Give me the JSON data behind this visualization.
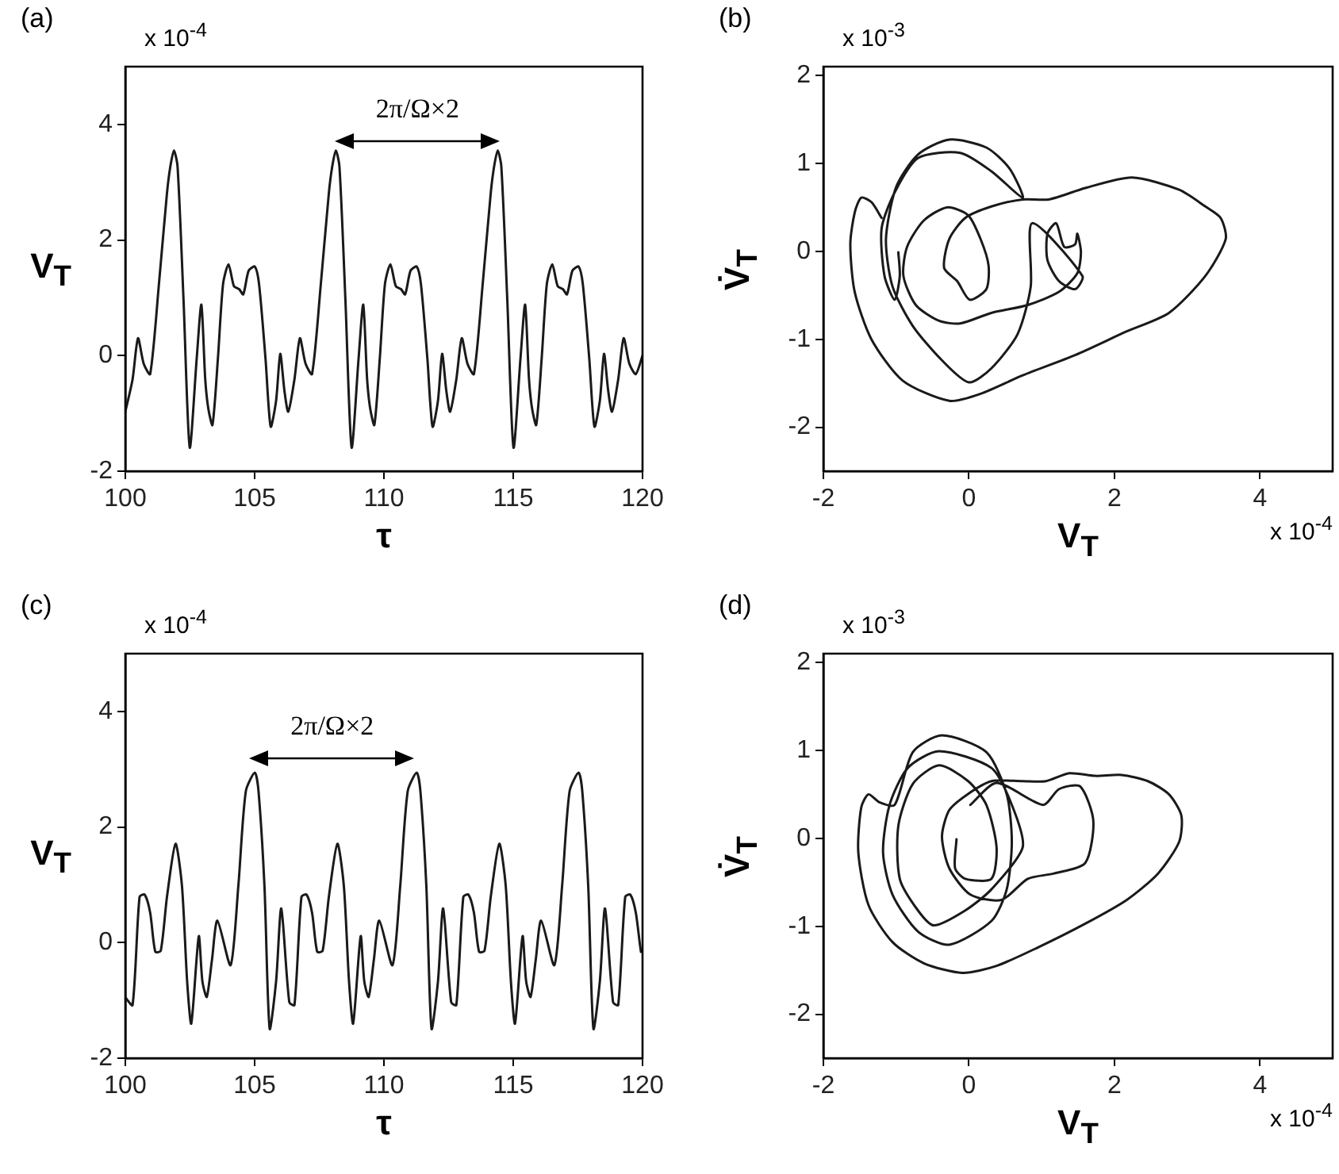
{
  "chart_data": [
    {
      "type": "line",
      "title": "(a)",
      "xlabel": "τ",
      "ylabel": "V$_{T}$",
      "xlim": [
        100,
        120
      ],
      "ylim": [
        -2,
        5
      ],
      "xticks": [
        100,
        105,
        110,
        115,
        120
      ],
      "yticks": [
        -2,
        0,
        2,
        4
      ],
      "annotations": [
        "x 10$^{-4}$",
        "2π/Ω×2"
      ],
      "series": [
        {
          "color": "#1a1a1a",
          "x": [
            100,
            100.28,
            100.49,
            100.71,
            100.96,
            101.3,
            101.61,
            101.74,
            101.88,
            102.02,
            102.25,
            102.49,
            102.76,
            102.94,
            103.09,
            103.21,
            103.37,
            103.58,
            103.78,
            103.99,
            104.2,
            104.4,
            104.56,
            104.77,
            105.01,
            105.17,
            105.42,
            105.62,
            105.83,
            105.99,
            106.15,
            106.3,
            106.54,
            106.75,
            106.97,
            107.22,
            107.56,
            107.87,
            108.0,
            108.14,
            108.28,
            108.51,
            108.75,
            109.02,
            109.2,
            109.35,
            109.47,
            109.63,
            109.84,
            110.04,
            110.25,
            110.46,
            110.66,
            110.82,
            111.03,
            111.27,
            111.43,
            111.68,
            111.88,
            112.09,
            112.25,
            112.41,
            112.56,
            112.8,
            113.01,
            113.23,
            113.48,
            113.82,
            114.13,
            114.26,
            114.4,
            114.54,
            114.77,
            115.01,
            115.28,
            115.46,
            115.61,
            115.73,
            115.89,
            116.1,
            116.3,
            116.51,
            116.72,
            116.92,
            117.08,
            117.29,
            117.53,
            117.69,
            117.94,
            118.14,
            118.35,
            118.51,
            118.67,
            118.82,
            119.06,
            119.27,
            119.49,
            119.74,
            120.0
          ],
          "values": [
            -0.97,
            -0.41,
            0.3,
            -0.14,
            -0.32,
            1.24,
            2.81,
            3.27,
            3.55,
            3.27,
            0.97,
            -1.59,
            -0.05,
            0.88,
            -0.41,
            -0.92,
            -1.2,
            -0.05,
            1.24,
            1.58,
            1.2,
            1.15,
            1.06,
            1.47,
            1.54,
            1.24,
            -0.05,
            -1.23,
            -0.78,
            0.03,
            -0.6,
            -0.97,
            -0.41,
            0.3,
            -0.14,
            -0.32,
            1.24,
            2.81,
            3.27,
            3.55,
            3.27,
            0.97,
            -1.59,
            -0.05,
            0.88,
            -0.41,
            -0.92,
            -1.2,
            -0.05,
            1.24,
            1.58,
            1.2,
            1.15,
            1.06,
            1.47,
            1.54,
            1.24,
            -0.05,
            -1.23,
            -0.78,
            0.03,
            -0.6,
            -0.97,
            -0.41,
            0.3,
            -0.14,
            -0.32,
            1.24,
            2.81,
            3.27,
            3.55,
            3.27,
            0.97,
            -1.59,
            -0.05,
            0.88,
            -0.41,
            -0.92,
            -1.2,
            -0.05,
            1.24,
            1.58,
            1.2,
            1.15,
            1.06,
            1.47,
            1.54,
            1.24,
            -0.05,
            -1.23,
            -0.78,
            0.03,
            -0.6,
            -0.97,
            -0.41,
            0.3,
            -0.14,
            -0.32,
            0
          ]
        }
      ]
    },
    {
      "type": "line",
      "title": "(b)",
      "xlabel": "V$_{T}$",
      "ylabel": "V̇$_{T}$",
      "xlim": [
        -2,
        5
      ],
      "ylim": [
        -2.5,
        2.1
      ],
      "xticks": [
        -2,
        0,
        2,
        4
      ],
      "yticks": [
        -2,
        -1,
        0,
        1,
        2
      ],
      "annotations": [
        "x 10$^{-3}$",
        "x 10$^{-4}$"
      ],
      "series": [
        {
          "color": "#1a1a1a",
          "x": [
            -1.2,
            -1.34,
            -1.48,
            -1.57,
            -1.63,
            -1.57,
            -1.34,
            -0.91,
            -0.27,
            0.16,
            0.74,
            1.46,
            2.17,
            2.75,
            3.25,
            3.53,
            3.46,
            3.25,
            2.89,
            2.24,
            1.6,
            1.1,
            0.74,
            0.31,
            -0.05,
            -0.27,
            -0.34,
            -0.16,
            0.01,
            0.24,
            0.27,
            0.16,
            -0.01,
            -0.3,
            -0.62,
            -0.85,
            -0.9,
            -0.73,
            -0.41,
            -0.12,
            0.31,
            0.81,
            1.24,
            1.49,
            1.54,
            1.49,
            1.46,
            1.31,
            1.2,
            1.08,
            1.08,
            1.24,
            1.46,
            1.56,
            0.87,
            0.85,
            0.67,
            0.31,
            0,
            -0.37,
            -0.77,
            -1.05,
            -1.14,
            -1.0,
            -0.7,
            -0.27,
            0.24,
            0.56,
            0.74,
            0.31,
            -0.12,
            -0.7,
            -1.02,
            -1.2,
            -1.16,
            -1.02,
            -0.95,
            -0.97
          ],
          "values": [
            0.38,
            0.56,
            0.61,
            0.44,
            0.08,
            -0.46,
            -1.0,
            -1.47,
            -1.7,
            -1.62,
            -1.41,
            -1.18,
            -0.91,
            -0.7,
            -0.28,
            0.14,
            0.38,
            0.51,
            0.7,
            0.84,
            0.72,
            0.59,
            0.59,
            0.51,
            0.38,
            0.14,
            -0.19,
            -0.34,
            -0.55,
            -0.43,
            -0.16,
            0.14,
            0.41,
            0.5,
            0.35,
            0.05,
            -0.28,
            -0.61,
            -0.79,
            -0.82,
            -0.7,
            -0.61,
            -0.46,
            -0.25,
            -0.01,
            0.2,
            0.08,
            0.05,
            0.32,
            0.2,
            -0.1,
            -0.34,
            -0.43,
            -0.28,
            0.32,
            -0.4,
            -0.94,
            -1.33,
            -1.49,
            -1.24,
            -0.85,
            -0.4,
            0.14,
            0.73,
            1.1,
            1.27,
            1.18,
            0.94,
            0.61,
            0.91,
            1.12,
            1.06,
            0.67,
            0.26,
            -0.28,
            -0.55,
            -0.28,
            -0.01
          ]
        }
      ]
    },
    {
      "type": "line",
      "title": "(c)",
      "xlabel": "τ",
      "ylabel": "V$_{T}$",
      "xlim": [
        100,
        120
      ],
      "ylim": [
        -2,
        5
      ],
      "xticks": [
        100,
        105,
        110,
        115,
        120
      ],
      "yticks": [
        -2,
        0,
        2,
        4
      ],
      "annotations": [
        "x 10$^{-4}$",
        "2π/Ω×2"
      ],
      "series": [
        {
          "color": "#1a1a1a",
          "x": [
            100,
            100.28,
            100.55,
            100.75,
            100.96,
            101.16,
            101.37,
            101.61,
            101.94,
            102.19,
            102.39,
            102.55,
            102.84,
            102.98,
            103.15,
            103.35,
            103.56,
            104.07,
            104.37,
            104.66,
            105.01,
            105.15,
            105.38,
            105.58,
            105.83,
            106.03,
            106.34,
            106.54,
            106.81,
            107.01,
            107.22,
            107.42,
            107.63,
            107.87,
            108.2,
            108.45,
            108.65,
            108.81,
            109.1,
            109.24,
            109.41,
            109.61,
            109.82,
            110.33,
            110.63,
            110.92,
            111.27,
            111.41,
            111.64,
            111.84,
            112.09,
            112.29,
            112.6,
            112.8,
            113.07,
            113.27,
            113.48,
            113.68,
            113.89,
            114.13,
            114.46,
            114.71,
            114.91,
            115.07,
            115.36,
            115.5,
            115.67,
            115.87,
            116.08,
            116.59,
            116.89,
            117.18,
            117.53,
            117.67,
            117.9,
            118.1,
            118.35,
            118.55,
            118.86,
            119.06,
            119.33,
            119.53,
            119.74,
            119.94,
            120.0
          ],
          "values": [
            -0.95,
            -1.08,
            0.79,
            0.83,
            0.52,
            -0.16,
            -0.14,
            0.79,
            1.71,
            0.98,
            -0.67,
            -1.4,
            0.11,
            -0.67,
            -0.94,
            -0.3,
            0.38,
            -0.39,
            0.98,
            2.62,
            2.94,
            2.62,
            0.98,
            -1.49,
            -0.67,
            0.59,
            -1.03,
            -1.08,
            0.79,
            0.83,
            0.52,
            -0.16,
            -0.14,
            0.79,
            1.71,
            0.98,
            -0.67,
            -1.4,
            0.11,
            -0.67,
            -0.94,
            -0.3,
            0.38,
            -0.39,
            0.98,
            2.62,
            2.94,
            2.62,
            0.98,
            -1.49,
            -0.67,
            0.59,
            -1.03,
            -1.08,
            0.79,
            0.83,
            0.52,
            -0.16,
            -0.14,
            0.79,
            1.71,
            0.98,
            -0.67,
            -1.4,
            0.11,
            -0.67,
            -0.94,
            -0.3,
            0.38,
            -0.39,
            0.98,
            2.62,
            2.94,
            2.62,
            0.98,
            -1.49,
            -0.67,
            0.59,
            -1.03,
            -1.08,
            0.79,
            0.83,
            0.52,
            -0.16,
            -0.14
          ]
        }
      ]
    },
    {
      "type": "line",
      "title": "(d)",
      "xlabel": "V$_{T}$",
      "ylabel": "V̇$_{T}$",
      "xlim": [
        -2,
        5
      ],
      "ylim": [
        -2.5,
        2.1
      ],
      "xticks": [
        -2,
        0,
        2,
        4
      ],
      "yticks": [
        -2,
        -1,
        0,
        1,
        2
      ],
      "annotations": [
        "x 10$^{-3}$",
        "x 10$^{-4}$"
      ],
      "series": [
        {
          "color": "#1a1a1a",
          "x": [
            -0.17,
            -0.19,
            -0.05,
            0.31,
            0.38,
            0.24,
            -0.01,
            -0.41,
            -0.77,
            -0.97,
            -0.95,
            -0.7,
            -0.48,
            -0.05,
            0.31,
            0.74,
            0.59,
            0.31,
            -0.41,
            -0.84,
            -1.09,
            -1.18,
            -1.05,
            -0.7,
            -0.27,
            0.31,
            0.52,
            0.59,
            0.52,
            0.24,
            -0.37,
            -0.77,
            -1.02,
            -1.23,
            -1.38,
            -1.48,
            -1.52,
            -1.38,
            -1.05,
            -0.62,
            -0.09,
            0.38,
            0.95,
            1.6,
            2.17,
            2.6,
            2.89,
            2.92,
            2.75,
            2.46,
            2.1,
            1.74,
            1.38,
            1.06,
            0.74,
            0.31,
            -0.02,
            -0.27,
            -0.37,
            -0.27,
            0.02,
            0.45,
            0.81,
            1.17,
            1.6,
            1.71,
            1.53,
            1.24,
            1.02,
            0.38,
            0.02
          ],
          "values": [
            -0.01,
            -0.34,
            -0.46,
            -0.46,
            -0.1,
            0.38,
            0.65,
            0.83,
            0.62,
            0.14,
            -0.46,
            -0.82,
            -0.99,
            -0.82,
            -0.58,
            -0.1,
            0.38,
            0.8,
            0.99,
            0.8,
            0.38,
            -0.16,
            -0.64,
            -1.06,
            -1.21,
            -0.94,
            -0.58,
            -0.04,
            0.5,
            0.98,
            1.17,
            0.98,
            0.38,
            0.41,
            0.5,
            0.35,
            -0.16,
            -0.76,
            -1.18,
            -1.42,
            -1.53,
            -1.45,
            -1.24,
            -0.97,
            -0.7,
            -0.4,
            -0.04,
            0.26,
            0.5,
            0.65,
            0.72,
            0.71,
            0.74,
            0.65,
            0.65,
            0.65,
            0.5,
            0.32,
            0.02,
            -0.34,
            -0.64,
            -0.7,
            -0.46,
            -0.4,
            -0.28,
            0.2,
            0.59,
            0.56,
            0.38,
            0.63,
            0.38
          ]
        }
      ]
    }
  ]
}
